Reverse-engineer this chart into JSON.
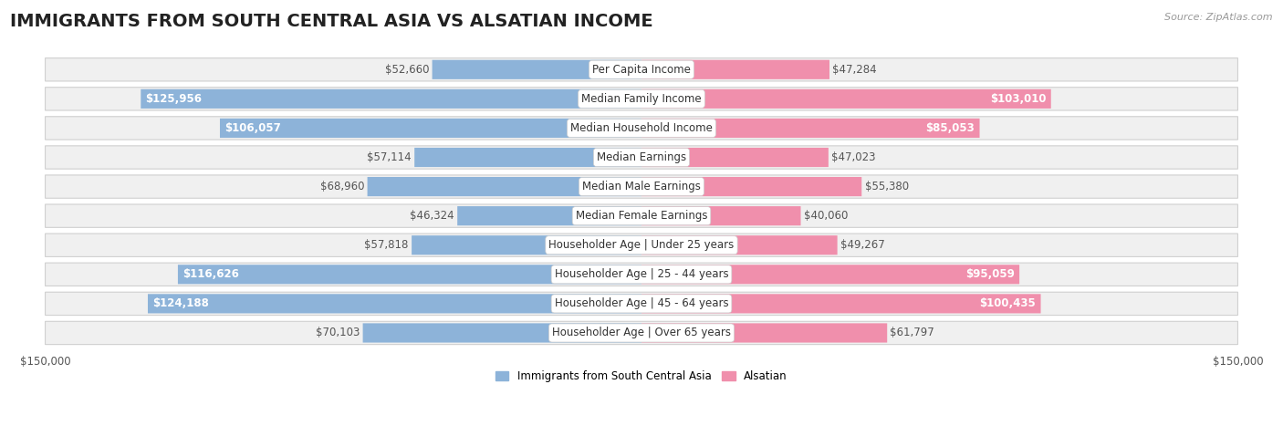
{
  "title": "IMMIGRANTS FROM SOUTH CENTRAL ASIA VS ALSATIAN INCOME",
  "source": "Source: ZipAtlas.com",
  "categories": [
    "Per Capita Income",
    "Median Family Income",
    "Median Household Income",
    "Median Earnings",
    "Median Male Earnings",
    "Median Female Earnings",
    "Householder Age | Under 25 years",
    "Householder Age | 25 - 44 years",
    "Householder Age | 45 - 64 years",
    "Householder Age | Over 65 years"
  ],
  "left_values": [
    52660,
    125956,
    106057,
    57114,
    68960,
    46324,
    57818,
    116626,
    124188,
    70103
  ],
  "right_values": [
    47284,
    103010,
    85053,
    47023,
    55380,
    40060,
    49267,
    95059,
    100435,
    61797
  ],
  "left_labels": [
    "$52,660",
    "$125,956",
    "$106,057",
    "$57,114",
    "$68,960",
    "$46,324",
    "$57,818",
    "$116,626",
    "$124,188",
    "$70,103"
  ],
  "right_labels": [
    "$47,284",
    "$103,010",
    "$85,053",
    "$47,023",
    "$55,380",
    "$40,060",
    "$49,267",
    "$95,059",
    "$100,435",
    "$61,797"
  ],
  "left_color": "#8db3d9",
  "right_color": "#f08fac",
  "left_legend": "Immigrants from South Central Asia",
  "right_legend": "Alsatian",
  "max_val": 150000,
  "row_bg_color": "#f0f0f0",
  "row_border_color": "#d0d0d0",
  "title_fontsize": 14,
  "source_fontsize": 8,
  "label_fontsize": 8.5,
  "category_fontsize": 8.5,
  "axis_fontsize": 8.5,
  "inside_label_threshold": 0.55,
  "inside_label_color": "white",
  "outside_label_color": "#555555"
}
